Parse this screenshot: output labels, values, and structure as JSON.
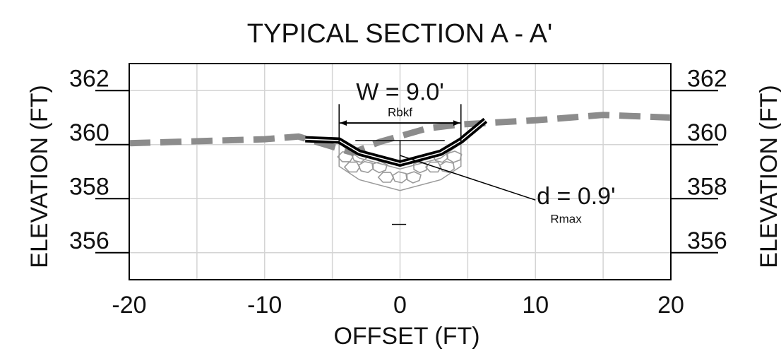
{
  "title": "TYPICAL SECTION A - A'",
  "chart_data": {
    "type": "line",
    "xlabel": "OFFSET (FT)",
    "ylabel_left": "ELEVATION (FT)",
    "ylabel_right": "ELEVATION (FT)",
    "xlim": [
      -20,
      20
    ],
    "ylim": [
      355,
      363
    ],
    "x_ticks": [
      -20,
      -10,
      0,
      10,
      20
    ],
    "y_ticks": [
      356,
      358,
      360,
      362
    ],
    "x_grid": [
      -20,
      -15,
      -10,
      -5,
      0,
      5,
      10,
      15,
      20
    ],
    "y_grid": [
      356,
      358,
      360,
      362
    ],
    "grid": true,
    "series": [
      {
        "role": "existing ground",
        "style": "dashed-gray",
        "points": [
          [
            -20,
            360.05
          ],
          [
            -10,
            360.2
          ],
          [
            -7.5,
            360.3
          ],
          [
            -3.5,
            359.7
          ],
          [
            -1.5,
            360.1
          ],
          [
            2,
            360.6
          ],
          [
            4.5,
            360.75
          ],
          [
            10,
            360.9
          ],
          [
            15,
            361.1
          ],
          [
            20,
            361.0
          ]
        ]
      },
      {
        "role": "proposed channel",
        "style": "solid-black",
        "points": [
          [
            -7,
            360.2
          ],
          [
            -4.5,
            360.15
          ],
          [
            -3,
            359.7
          ],
          [
            0,
            359.3
          ],
          [
            3,
            359.7
          ],
          [
            4.5,
            360.15
          ],
          [
            6.3,
            360.9
          ]
        ]
      }
    ],
    "annotations": {
      "width_label": "W = 9.0'",
      "width_sub": "Rbkf",
      "width_from": -4.5,
      "width_to": 4.5,
      "width_y": 360.8,
      "depth_label": "d = 0.9'",
      "depth_sub": "Rmax",
      "depth_value": 0.9
    }
  }
}
